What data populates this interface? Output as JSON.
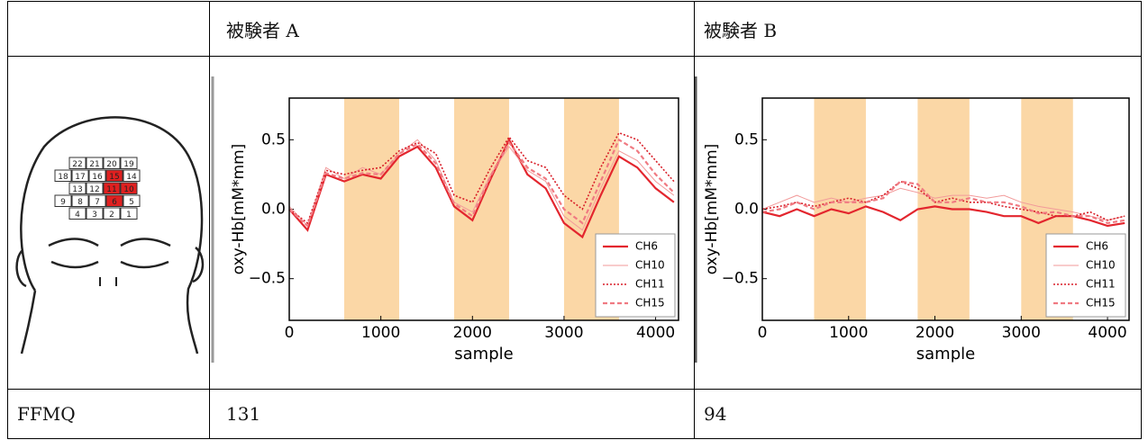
{
  "table": {
    "header": [
      "被験者 A",
      "被験者 B"
    ],
    "footer": {
      "label": "FFMQ",
      "values": [
        131,
        94
      ]
    }
  },
  "head_diagram": {
    "rows": [
      [
        "22",
        "21",
        "20",
        "19"
      ],
      [
        "18",
        "17",
        "16",
        "15",
        "14"
      ],
      [
        "13",
        "12",
        "11",
        "10"
      ],
      [
        "9",
        "8",
        "7",
        "6",
        "5"
      ],
      [
        "4",
        "3",
        "2",
        "1"
      ]
    ],
    "highlighted": [
      "15",
      "11",
      "10",
      "6"
    ],
    "highlight_color": "#e02020"
  },
  "chart_data": [
    {
      "type": "line",
      "ylabel": "oxy-Hb[mM*mm]",
      "xlabel": "sample",
      "xlim": [
        0,
        4250
      ],
      "ylim": [
        -0.8,
        0.8
      ],
      "xticks": [
        0,
        1000,
        2000,
        3000,
        4000
      ],
      "yticks": [
        0.5,
        {
          "value": 0,
          "label": "0.0"
        },
        {
          "value": -0.5,
          "label": "−0.5"
        }
      ],
      "shaded_regions": [
        [
          600,
          1200
        ],
        [
          1800,
          2400
        ],
        [
          3000,
          3600
        ]
      ],
      "shade_color": "#fbd7a6",
      "legend": "lower right",
      "x": [
        0,
        200,
        400,
        600,
        800,
        1000,
        1200,
        1400,
        1600,
        1800,
        2000,
        2200,
        2400,
        2600,
        2800,
        3000,
        3200,
        3400,
        3600,
        3800,
        4000,
        4200
      ],
      "series": [
        {
          "name": "CH6",
          "color": "#e3262e",
          "style": "solid",
          "values": [
            0.0,
            -0.15,
            0.25,
            0.2,
            0.25,
            0.22,
            0.38,
            0.45,
            0.3,
            0.02,
            -0.08,
            0.22,
            0.5,
            0.25,
            0.15,
            -0.1,
            -0.2,
            0.1,
            0.38,
            0.3,
            0.15,
            0.05
          ]
        },
        {
          "name": "CH10",
          "color": "#f29a9a",
          "style": "thin",
          "values": [
            0.02,
            -0.12,
            0.3,
            0.22,
            0.3,
            0.25,
            0.4,
            0.5,
            0.35,
            0.05,
            -0.02,
            0.25,
            0.45,
            0.28,
            0.2,
            -0.05,
            -0.15,
            0.15,
            0.42,
            0.35,
            0.2,
            0.1
          ]
        },
        {
          "name": "CH11",
          "color": "#d81e28",
          "style": "dotted",
          "values": [
            0.0,
            -0.1,
            0.28,
            0.25,
            0.28,
            0.3,
            0.42,
            0.48,
            0.4,
            0.1,
            0.05,
            0.3,
            0.52,
            0.35,
            0.3,
            0.1,
            0.0,
            0.3,
            0.55,
            0.5,
            0.35,
            0.2
          ]
        },
        {
          "name": "CH15",
          "color": "#f07a82",
          "style": "dashed",
          "values": [
            0.0,
            -0.12,
            0.26,
            0.22,
            0.26,
            0.25,
            0.4,
            0.47,
            0.33,
            0.04,
            -0.05,
            0.24,
            0.48,
            0.3,
            0.22,
            0.0,
            -0.1,
            0.2,
            0.5,
            0.42,
            0.25,
            0.12
          ]
        }
      ]
    },
    {
      "type": "line",
      "ylabel": "oxy-Hb[mM*mm]",
      "xlabel": "sample",
      "xlim": [
        0,
        4250
      ],
      "ylim": [
        -0.8,
        0.8
      ],
      "xticks": [
        0,
        1000,
        2000,
        3000,
        4000
      ],
      "yticks": [
        0.5,
        {
          "value": 0,
          "label": "0.0"
        },
        {
          "value": -0.5,
          "label": "−0.5"
        }
      ],
      "shaded_regions": [
        [
          600,
          1200
        ],
        [
          1800,
          2400
        ],
        [
          3000,
          3600
        ]
      ],
      "shade_color": "#fbd7a6",
      "legend": "lower right",
      "x": [
        0,
        200,
        400,
        600,
        800,
        1000,
        1200,
        1400,
        1600,
        1800,
        2000,
        2200,
        2400,
        2600,
        2800,
        3000,
        3200,
        3400,
        3600,
        3800,
        4000,
        4200
      ],
      "series": [
        {
          "name": "CH6",
          "color": "#e3262e",
          "style": "solid",
          "values": [
            -0.02,
            -0.05,
            0.0,
            -0.05,
            0.0,
            -0.03,
            0.02,
            -0.02,
            -0.08,
            0.0,
            0.02,
            0.0,
            0.0,
            -0.02,
            -0.05,
            -0.05,
            -0.1,
            -0.05,
            -0.05,
            -0.08,
            -0.12,
            -0.1
          ]
        },
        {
          "name": "CH10",
          "color": "#f29a9a",
          "style": "thin",
          "values": [
            0.0,
            0.05,
            0.1,
            0.05,
            0.08,
            0.05,
            0.08,
            0.1,
            0.15,
            0.12,
            0.08,
            0.1,
            0.1,
            0.08,
            0.1,
            0.05,
            0.02,
            0.0,
            -0.02,
            -0.05,
            -0.08,
            -0.05
          ]
        },
        {
          "name": "CH11",
          "color": "#d81e28",
          "style": "dotted",
          "values": [
            0.0,
            0.02,
            0.05,
            0.02,
            0.05,
            0.08,
            0.05,
            0.1,
            0.2,
            0.15,
            0.05,
            0.08,
            0.05,
            0.05,
            0.02,
            0.0,
            -0.02,
            -0.05,
            -0.05,
            -0.02,
            -0.08,
            -0.05
          ]
        },
        {
          "name": "CH15",
          "color": "#f07a82",
          "style": "dashed",
          "values": [
            -0.02,
            0.0,
            0.05,
            0.0,
            0.05,
            0.05,
            0.05,
            0.08,
            0.2,
            0.18,
            0.05,
            0.05,
            0.08,
            0.05,
            0.05,
            0.02,
            -0.03,
            -0.02,
            -0.05,
            -0.05,
            -0.1,
            -0.08
          ]
        }
      ]
    }
  ]
}
